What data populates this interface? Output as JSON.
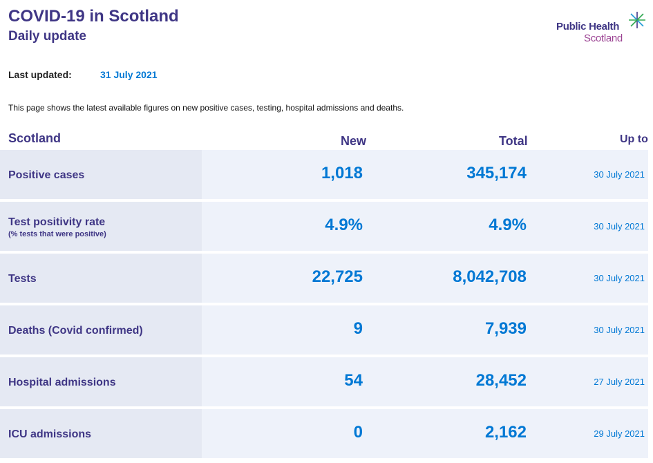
{
  "header": {
    "title": "COVID-19 in Scotland",
    "subtitle": "Daily update",
    "logo_line1": "Public Health",
    "logo_line2": "Scotland"
  },
  "updated": {
    "label": "Last updated:",
    "value": "31 July 2021"
  },
  "intro": "This page shows the latest available figures on new positive cases, testing, hospital admissions and deaths.",
  "table": {
    "headers": {
      "region": "Scotland",
      "new": "New",
      "total": "Total",
      "upto": "Up to"
    },
    "rows": [
      {
        "label": "Positive cases",
        "sublabel": "",
        "new": "1,018",
        "total": "345,174",
        "upto": "30 July 2021"
      },
      {
        "label": "Test positivity rate",
        "sublabel": "(% tests that were positive)",
        "new": "4.9%",
        "total": "4.9%",
        "upto": "30 July 2021"
      },
      {
        "label": "Tests",
        "sublabel": "",
        "new": "22,725",
        "total": "8,042,708",
        "upto": "30 July 2021"
      },
      {
        "label": "Deaths (Covid confirmed)",
        "sublabel": "",
        "new": "9",
        "total": "7,939",
        "upto": "30 July 2021"
      },
      {
        "label": "Hospital admissions",
        "sublabel": "",
        "new": "54",
        "total": "28,452",
        "upto": "27 July 2021"
      },
      {
        "label": "ICU admissions",
        "sublabel": "",
        "new": "0",
        "total": "2,162",
        "upto": "29 July 2021"
      }
    ]
  },
  "colors": {
    "heading": "#3f3685",
    "value": "#0078d4",
    "logo_scotland": "#9b4393",
    "logo_star_green": "#2ea84f"
  }
}
